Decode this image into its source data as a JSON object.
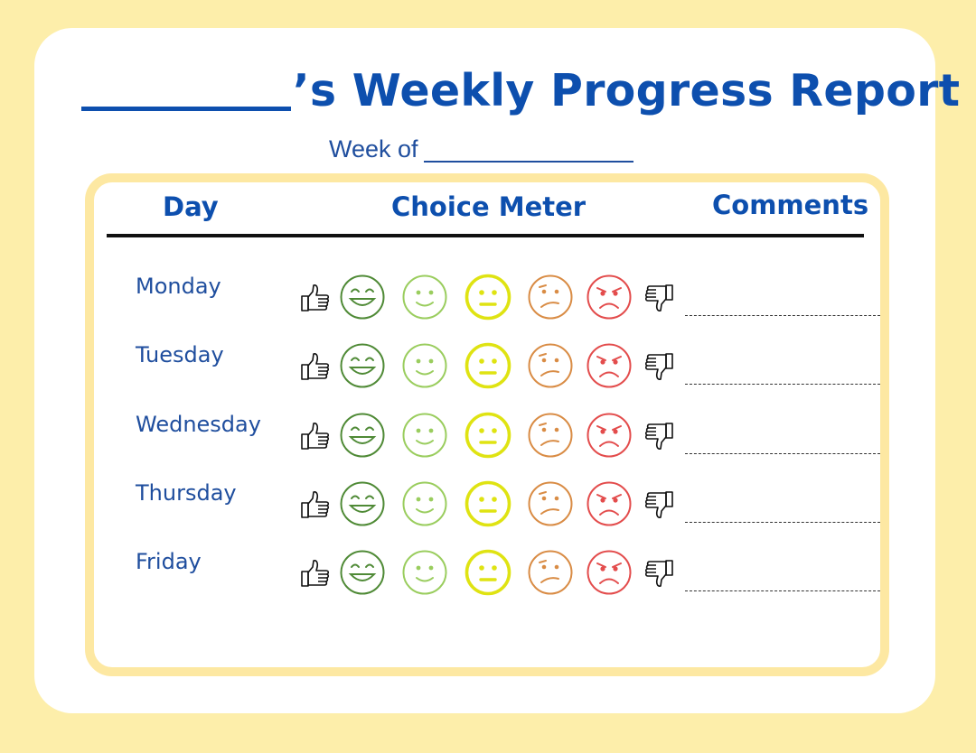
{
  "header": {
    "title_suffix": "’s Weekly Progress Report",
    "week_label": "Week of"
  },
  "table": {
    "columns": {
      "day": "Day",
      "meter": "Choice Meter",
      "comments": "Comments"
    },
    "days": [
      "Monday",
      "Tuesday",
      "Wednesday",
      "Thursday",
      "Friday"
    ]
  },
  "meter": {
    "faces": [
      {
        "icon": "big-smile-face-icon",
        "color": "#4f8a36"
      },
      {
        "icon": "smile-face-icon",
        "color": "#9acd5e"
      },
      {
        "icon": "neutral-face-icon",
        "color": "#dfe312"
      },
      {
        "icon": "frown-face-icon",
        "color": "#d98c45"
      },
      {
        "icon": "upset-face-icon",
        "color": "#e34c4c"
      }
    ],
    "thumbs_up_icon": "thumbs-up-icon",
    "thumbs_down_icon": "thumbs-down-icon"
  },
  "colors": {
    "background": "#fdeeaa",
    "title": "#0d4fae",
    "board_border": "#fde8a2"
  }
}
